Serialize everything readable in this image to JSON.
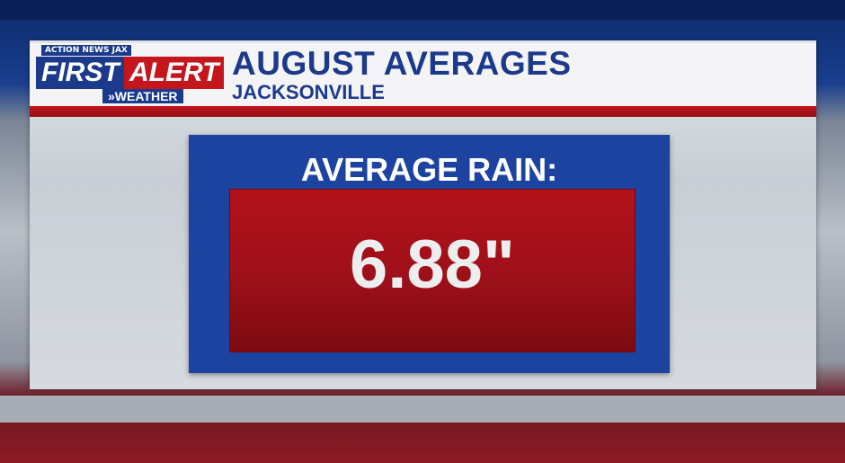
{
  "logo": {
    "network": "ACTION NEWS JAX",
    "first": "FIRST",
    "alert": "ALERT",
    "weather": "»WEATHER"
  },
  "header": {
    "title": "AUGUST AVERAGES",
    "subtitle": "JACKSONVILLE"
  },
  "card": {
    "label": "AVERAGE RAIN:",
    "value": "6.88\""
  }
}
